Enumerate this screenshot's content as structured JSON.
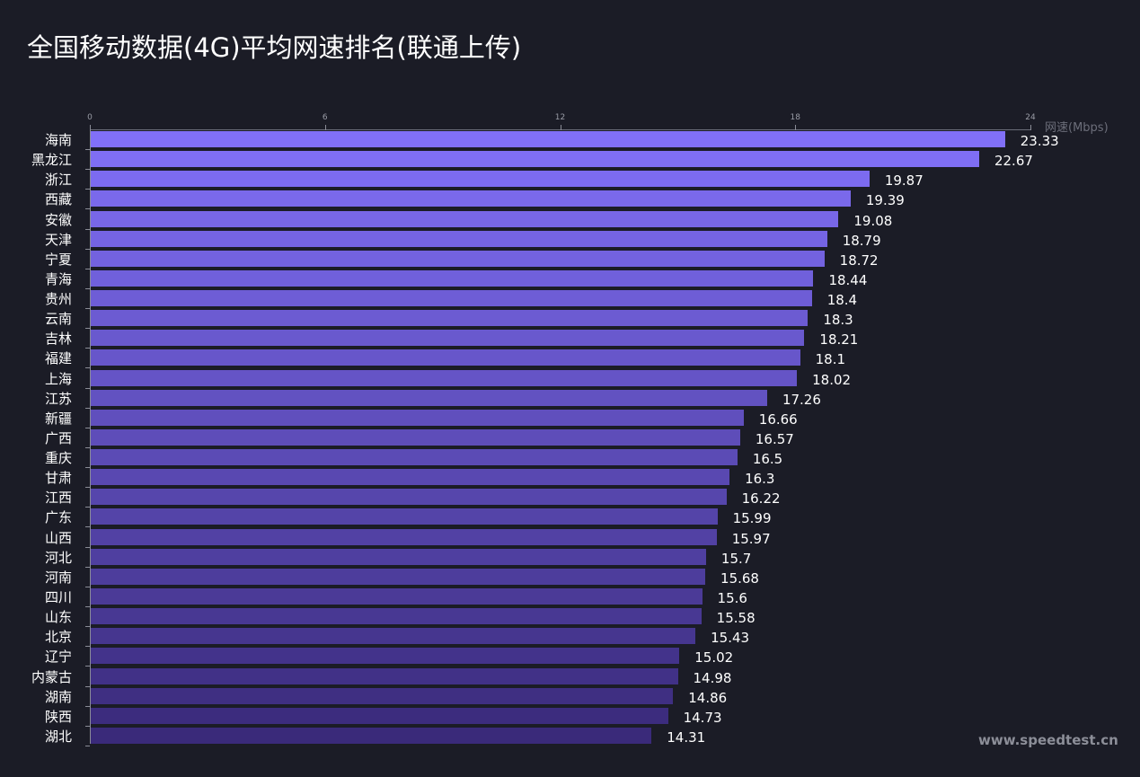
{
  "title": "全国移动数据(4G)平均网速排名(联通上传)",
  "watermark": "www.speedtest.cn",
  "axis": {
    "ticks": [
      "0",
      "6",
      "12",
      "18",
      "24"
    ],
    "unit_label": "网速(Mbps)"
  },
  "colors": {
    "background": "#1b1c26",
    "bar_top": "#8170f8",
    "bar_bottom": "#3a2a7a",
    "text": "#ffffff",
    "axis": "#8a8c96"
  },
  "chart_data": {
    "type": "bar",
    "orientation": "horizontal",
    "title": "全国移动数据(4G)平均网速排名(联通上传)",
    "xlabel": "网速(Mbps)",
    "ylabel": "",
    "xlim": [
      0,
      24
    ],
    "xticks": [
      0,
      6,
      12,
      18,
      24
    ],
    "grid": false,
    "legend": null,
    "axis_position": "top",
    "categories": [
      "海南",
      "黑龙江",
      "浙江",
      "西藏",
      "安徽",
      "天津",
      "宁夏",
      "青海",
      "贵州",
      "云南",
      "吉林",
      "福建",
      "上海",
      "江苏",
      "新疆",
      "广西",
      "重庆",
      "甘肃",
      "江西",
      "广东",
      "山西",
      "河北",
      "河南",
      "四川",
      "山东",
      "北京",
      "辽宁",
      "内蒙古",
      "湖南",
      "陕西",
      "湖北"
    ],
    "values": [
      23.33,
      22.67,
      19.87,
      19.39,
      19.08,
      18.79,
      18.72,
      18.44,
      18.4,
      18.3,
      18.21,
      18.1,
      18.02,
      17.26,
      16.66,
      16.57,
      16.5,
      16.3,
      16.22,
      15.99,
      15.97,
      15.7,
      15.68,
      15.6,
      15.58,
      15.43,
      15.02,
      14.98,
      14.86,
      14.73,
      14.31
    ],
    "value_labels": [
      "23.33",
      "22.67",
      "19.87",
      "19.39",
      "19.08",
      "18.79",
      "18.72",
      "18.44",
      "18.4",
      "18.3",
      "18.21",
      "18.1",
      "18.02",
      "17.26",
      "16.66",
      "16.57",
      "16.5",
      "16.3",
      "16.22",
      "15.99",
      "15.97",
      "15.7",
      "15.68",
      "15.6",
      "15.58",
      "15.43",
      "15.02",
      "14.98",
      "14.86",
      "14.73",
      "14.31"
    ]
  }
}
